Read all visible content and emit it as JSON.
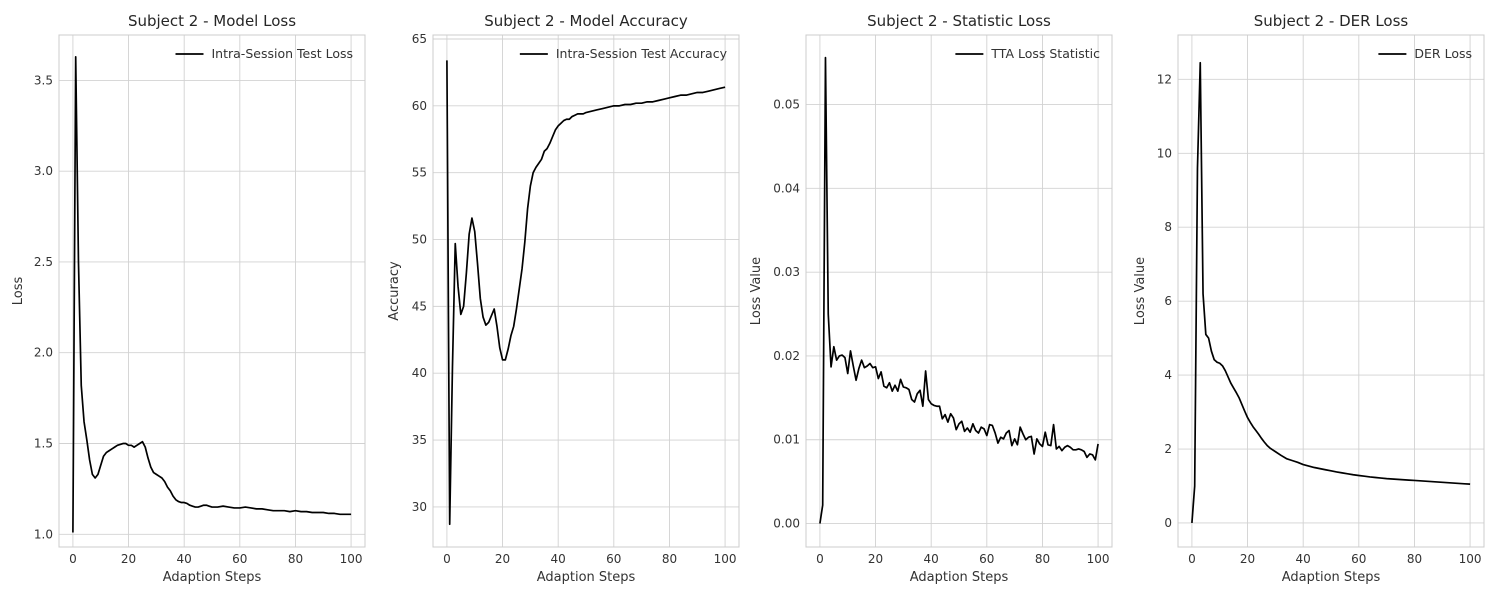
{
  "chart_data": [
    {
      "type": "line",
      "title": "Subject 2 - Model Loss",
      "xlabel": "Adaption Steps",
      "ylabel": "Loss",
      "xlim": [
        -5,
        105
      ],
      "ylim": [
        0.93,
        3.75
      ],
      "xticks": [
        0,
        20,
        40,
        60,
        80,
        100
      ],
      "yticks": [
        1.0,
        1.5,
        2.0,
        2.5,
        3.0,
        3.5
      ],
      "ytick_decimals": 1,
      "legend": "top-right",
      "grid": true,
      "series": [
        {
          "name": "Intra-Session Test Loss",
          "x": [
            0,
            1,
            2,
            3,
            4,
            5,
            6,
            7,
            8,
            9,
            10,
            11,
            12,
            13,
            14,
            15,
            16,
            17,
            18,
            19,
            20,
            21,
            22,
            23,
            24,
            25,
            26,
            27,
            28,
            29,
            30,
            31,
            32,
            33,
            34,
            35,
            36,
            37,
            38,
            39,
            40,
            41,
            42,
            43,
            44,
            45,
            46,
            47,
            48,
            49,
            50,
            52,
            54,
            56,
            58,
            60,
            62,
            64,
            66,
            68,
            70,
            72,
            74,
            76,
            78,
            80,
            82,
            84,
            86,
            88,
            90,
            92,
            94,
            96,
            98,
            100
          ],
          "y": [
            1.01,
            3.63,
            2.5,
            1.82,
            1.62,
            1.52,
            1.41,
            1.33,
            1.31,
            1.33,
            1.38,
            1.43,
            1.45,
            1.46,
            1.47,
            1.48,
            1.49,
            1.495,
            1.5,
            1.5,
            1.49,
            1.49,
            1.48,
            1.49,
            1.5,
            1.51,
            1.48,
            1.42,
            1.37,
            1.34,
            1.33,
            1.32,
            1.31,
            1.29,
            1.26,
            1.24,
            1.21,
            1.19,
            1.18,
            1.175,
            1.175,
            1.17,
            1.16,
            1.155,
            1.15,
            1.15,
            1.155,
            1.16,
            1.16,
            1.155,
            1.15,
            1.15,
            1.155,
            1.15,
            1.145,
            1.145,
            1.15,
            1.145,
            1.14,
            1.14,
            1.135,
            1.13,
            1.13,
            1.13,
            1.125,
            1.13,
            1.125,
            1.125,
            1.12,
            1.12,
            1.12,
            1.115,
            1.115,
            1.11,
            1.11,
            1.11
          ]
        }
      ]
    },
    {
      "type": "line",
      "title": "Subject 2 - Model Accuracy",
      "xlabel": "Adaption Steps",
      "ylabel": "Accuracy",
      "xlim": [
        -5,
        105
      ],
      "ylim": [
        27.0,
        65.3
      ],
      "xticks": [
        0,
        20,
        40,
        60,
        80,
        100
      ],
      "yticks": [
        30,
        35,
        40,
        45,
        50,
        55,
        60,
        65
      ],
      "ytick_decimals": 0,
      "legend": "top-right",
      "grid": true,
      "series": [
        {
          "name": "Intra-Session Test Accuracy",
          "x": [
            0,
            1,
            2,
            3,
            4,
            5,
            6,
            7,
            8,
            9,
            10,
            11,
            12,
            13,
            14,
            15,
            16,
            17,
            18,
            19,
            20,
            21,
            22,
            23,
            24,
            25,
            26,
            27,
            28,
            29,
            30,
            31,
            32,
            33,
            34,
            35,
            36,
            37,
            38,
            39,
            40,
            41,
            42,
            43,
            44,
            45,
            46,
            47,
            48,
            49,
            50,
            52,
            54,
            56,
            58,
            60,
            62,
            64,
            66,
            68,
            70,
            72,
            74,
            76,
            78,
            80,
            82,
            84,
            86,
            88,
            90,
            92,
            94,
            96,
            98,
            100
          ],
          "y": [
            63.4,
            28.7,
            40.5,
            49.7,
            46.5,
            44.4,
            45.0,
            47.5,
            50.4,
            51.6,
            50.6,
            48.2,
            45.6,
            44.2,
            43.6,
            43.8,
            44.3,
            44.8,
            43.5,
            41.9,
            41.0,
            41.0,
            41.8,
            42.8,
            43.5,
            44.8,
            46.3,
            47.8,
            49.8,
            52.3,
            54.0,
            55.0,
            55.4,
            55.7,
            56.0,
            56.6,
            56.8,
            57.2,
            57.7,
            58.2,
            58.5,
            58.7,
            58.9,
            59.0,
            59.0,
            59.2,
            59.3,
            59.4,
            59.4,
            59.4,
            59.5,
            59.6,
            59.7,
            59.8,
            59.9,
            60.0,
            60.0,
            60.1,
            60.1,
            60.2,
            60.2,
            60.3,
            60.3,
            60.4,
            60.5,
            60.6,
            60.7,
            60.8,
            60.8,
            60.9,
            61.0,
            61.0,
            61.1,
            61.2,
            61.3,
            61.4
          ]
        }
      ]
    },
    {
      "type": "line",
      "title": "Subject 2 - Statistic Loss",
      "xlabel": "Adaption Steps",
      "ylabel": "Loss Value",
      "xlim": [
        -5,
        105
      ],
      "ylim": [
        -0.0028,
        0.0583
      ],
      "xticks": [
        0,
        20,
        40,
        60,
        80,
        100
      ],
      "yticks": [
        0.0,
        0.01,
        0.02,
        0.03,
        0.04,
        0.05
      ],
      "ytick_decimals": 2,
      "legend": "top-right",
      "grid": true,
      "series": [
        {
          "name": "TTA Loss Statistic",
          "x": [
            0,
            1,
            2,
            3,
            4,
            5,
            6,
            7,
            8,
            9,
            10,
            11,
            12,
            13,
            14,
            15,
            16,
            17,
            18,
            19,
            20,
            21,
            22,
            23,
            24,
            25,
            26,
            27,
            28,
            29,
            30,
            31,
            32,
            33,
            34,
            35,
            36,
            37,
            38,
            39,
            40,
            41,
            42,
            43,
            44,
            45,
            46,
            47,
            48,
            49,
            50,
            51,
            52,
            53,
            54,
            55,
            56,
            57,
            58,
            59,
            60,
            61,
            62,
            63,
            64,
            65,
            66,
            67,
            68,
            69,
            70,
            71,
            72,
            73,
            74,
            75,
            76,
            77,
            78,
            79,
            80,
            81,
            82,
            83,
            84,
            85,
            86,
            87,
            88,
            89,
            90,
            91,
            92,
            93,
            94,
            95,
            96,
            97,
            98,
            99,
            100
          ],
          "y": [
            0.0,
            0.0022,
            0.0556,
            0.025,
            0.0187,
            0.0211,
            0.0195,
            0.02,
            0.0201,
            0.0198,
            0.0179,
            0.0206,
            0.0188,
            0.0171,
            0.0185,
            0.0195,
            0.0186,
            0.0188,
            0.0191,
            0.0186,
            0.0187,
            0.0173,
            0.0181,
            0.0164,
            0.0162,
            0.0168,
            0.0158,
            0.0165,
            0.0158,
            0.0172,
            0.0163,
            0.0162,
            0.016,
            0.0148,
            0.0145,
            0.0155,
            0.0159,
            0.014,
            0.0182,
            0.0148,
            0.0143,
            0.0141,
            0.014,
            0.014,
            0.0125,
            0.013,
            0.0121,
            0.0131,
            0.0126,
            0.0112,
            0.0119,
            0.0122,
            0.011,
            0.0114,
            0.0109,
            0.0119,
            0.0111,
            0.0108,
            0.0115,
            0.0113,
            0.0105,
            0.0118,
            0.0117,
            0.0108,
            0.0096,
            0.0103,
            0.0101,
            0.0108,
            0.0111,
            0.0093,
            0.0101,
            0.0094,
            0.0115,
            0.0107,
            0.01,
            0.0103,
            0.0104,
            0.0083,
            0.0101,
            0.0095,
            0.0092,
            0.0109,
            0.0094,
            0.0093,
            0.0118,
            0.0089,
            0.0092,
            0.0087,
            0.0091,
            0.0093,
            0.0091,
            0.0088,
            0.0088,
            0.0089,
            0.0088,
            0.0086,
            0.0079,
            0.0083,
            0.0082,
            0.0076,
            0.0095
          ]
        }
      ]
    },
    {
      "type": "line",
      "title": "Subject 2 - DER Loss",
      "xlabel": "Adaption Steps",
      "ylabel": "Loss Value",
      "xlim": [
        -5,
        105
      ],
      "ylim": [
        -0.65,
        13.2
      ],
      "xticks": [
        0,
        20,
        40,
        60,
        80,
        100
      ],
      "yticks": [
        0,
        2,
        4,
        6,
        8,
        10,
        12
      ],
      "ytick_decimals": 0,
      "legend": "top-right",
      "grid": true,
      "series": [
        {
          "name": "DER Loss",
          "x": [
            0,
            1,
            2,
            3,
            4,
            5,
            6,
            7,
            8,
            9,
            10,
            11,
            12,
            13,
            14,
            15,
            16,
            17,
            18,
            19,
            20,
            21,
            22,
            23,
            24,
            25,
            26,
            27,
            28,
            29,
            30,
            32,
            34,
            36,
            38,
            40,
            42,
            44,
            46,
            48,
            50,
            52,
            54,
            56,
            58,
            60,
            62,
            64,
            66,
            68,
            70,
            72,
            74,
            76,
            78,
            80,
            82,
            84,
            86,
            88,
            90,
            92,
            94,
            96,
            98,
            100
          ],
          "y": [
            0.0,
            1.0,
            9.6,
            12.45,
            6.2,
            5.1,
            5.0,
            4.65,
            4.42,
            4.35,
            4.32,
            4.25,
            4.12,
            3.95,
            3.78,
            3.65,
            3.52,
            3.38,
            3.2,
            3.02,
            2.85,
            2.72,
            2.6,
            2.5,
            2.4,
            2.29,
            2.19,
            2.1,
            2.03,
            1.98,
            1.93,
            1.83,
            1.74,
            1.69,
            1.64,
            1.58,
            1.54,
            1.5,
            1.47,
            1.44,
            1.41,
            1.38,
            1.355,
            1.33,
            1.305,
            1.285,
            1.265,
            1.245,
            1.23,
            1.215,
            1.2,
            1.19,
            1.18,
            1.17,
            1.16,
            1.15,
            1.14,
            1.13,
            1.12,
            1.11,
            1.1,
            1.09,
            1.08,
            1.07,
            1.06,
            1.05
          ]
        }
      ]
    }
  ]
}
